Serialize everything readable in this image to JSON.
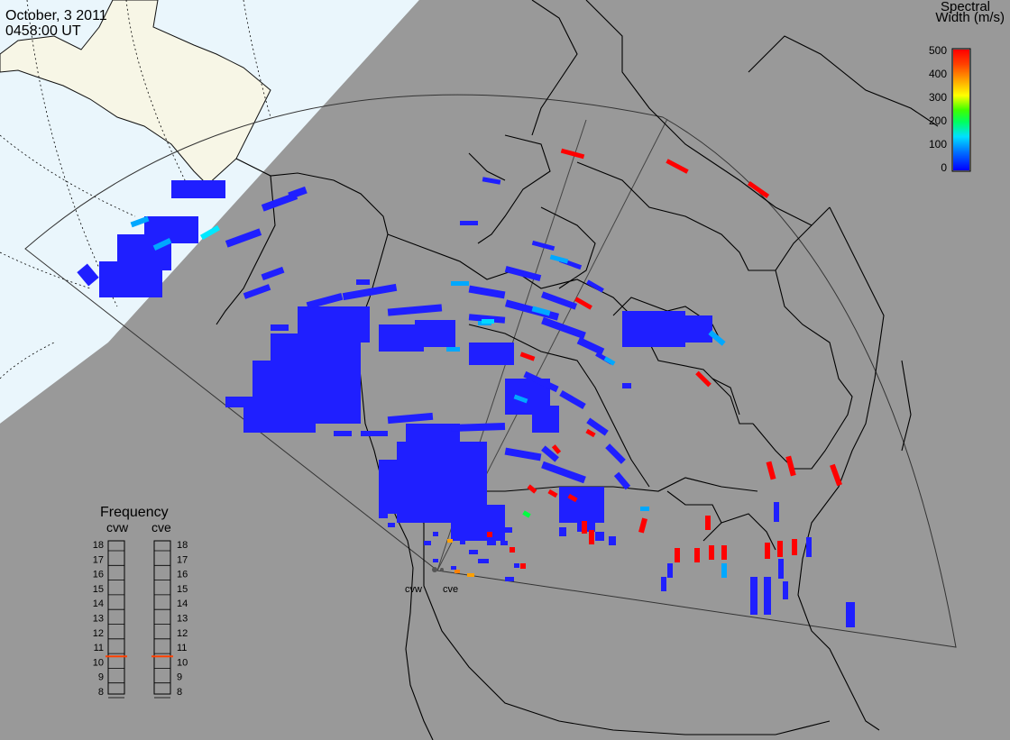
{
  "header": {
    "date": "October, 3 2011",
    "time": "0458:00 UT"
  },
  "colorbar": {
    "title_line1": "Spectral",
    "title_line2": "Width (m/s)",
    "ticks": [
      "500",
      "400",
      "300",
      "200",
      "100",
      "0"
    ],
    "min": 0,
    "max": 500,
    "colors": [
      "#0000ff",
      "#0080ff",
      "#00d0ff",
      "#00ff80",
      "#40ff00",
      "#ffff00",
      "#ffa000",
      "#ff5000",
      "#ff0000"
    ]
  },
  "frequency": {
    "title": "Frequency",
    "left_label": "cvw",
    "right_label": "cve",
    "scale": [
      "18",
      "17",
      "16",
      "15",
      "14",
      "13",
      "12",
      "11",
      "10",
      "9",
      "8"
    ],
    "min": 8,
    "max": 18,
    "cvw_mhz": 10.5,
    "cve_mhz": 10.5
  },
  "sites": {
    "west": "cvw",
    "east": "cve"
  },
  "colors": {
    "background": "#999999",
    "ocean": "#eaf6fc",
    "land_in_daylight": "#f7f6e6",
    "marker": "#ff4000"
  }
}
